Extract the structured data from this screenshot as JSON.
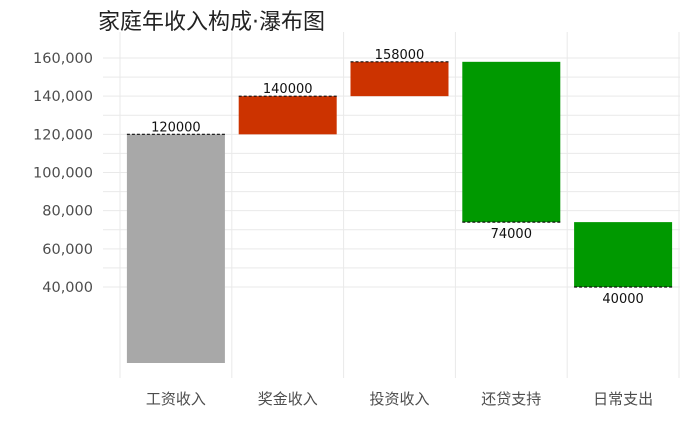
{
  "chart_data": {
    "type": "bar",
    "subtype": "waterfall",
    "title": "家庭年收入构成·瀑布图",
    "xlabel": "",
    "ylabel": "",
    "categories": [
      "工资收入",
      "奖金收入",
      "投资收入",
      "还贷支持",
      "日常支出"
    ],
    "bars": [
      {
        "category": "工资收入",
        "start": 0,
        "end": 120000,
        "label": "120000",
        "kind": "base"
      },
      {
        "category": "奖金收入",
        "start": 120000,
        "end": 140000,
        "label": "140000",
        "kind": "increase"
      },
      {
        "category": "投资收入",
        "start": 140000,
        "end": 158000,
        "label": "158000",
        "kind": "increase"
      },
      {
        "category": "还贷支持",
        "start": 158000,
        "end": 74000,
        "label": "74000",
        "kind": "decrease"
      },
      {
        "category": "日常支出",
        "start": 74000,
        "end": 40000,
        "label": "40000",
        "kind": "decrease"
      }
    ],
    "yticks": [
      40000,
      60000,
      80000,
      100000,
      120000,
      140000,
      160000
    ],
    "ytick_labels": [
      "40,000",
      "60,000",
      "80,000",
      "100,000",
      "120,000",
      "140,000",
      "160,000"
    ],
    "grid": true,
    "legend": "none",
    "colors": {
      "base": "#a8a8a8",
      "increase": "#cc3300",
      "decrease": "#009900"
    }
  }
}
